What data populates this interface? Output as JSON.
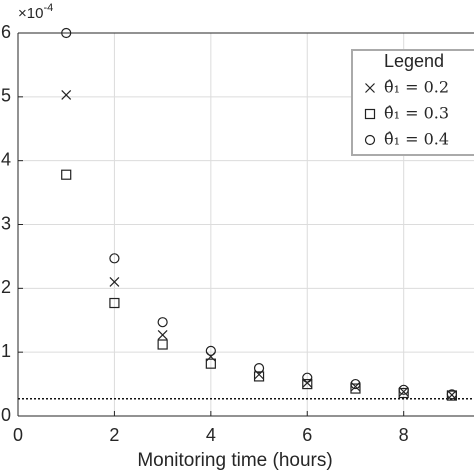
{
  "chart_data": {
    "type": "scatter",
    "x_label": "Monitoring time (hours)",
    "y_multiplier": {
      "base": "×10",
      "exponent": "-4"
    },
    "x": [
      1,
      2,
      3,
      4,
      5,
      6,
      7,
      8,
      9
    ],
    "series": [
      {
        "name": "θ̂₁ = 0.2",
        "marker": "x",
        "color": "#222222",
        "values": [
          5.03,
          2.1,
          1.27,
          0.93,
          0.65,
          0.52,
          0.46,
          0.38,
          0.33
        ]
      },
      {
        "name": "θ̂₁ = 0.3",
        "marker": "square",
        "color": "#222222",
        "values": [
          3.78,
          1.77,
          1.12,
          0.82,
          0.62,
          0.5,
          0.43,
          0.36,
          0.32
        ]
      },
      {
        "name": "θ̂₁ = 0.4",
        "marker": "circle",
        "color": "#222222",
        "values": [
          6.0,
          2.47,
          1.47,
          1.02,
          0.75,
          0.6,
          0.5,
          0.41,
          0.34
        ]
      }
    ],
    "reference_line": 0.27,
    "xlim": [
      0,
      9.5
    ],
    "xticks": [
      0,
      2,
      4,
      6,
      8
    ],
    "ylim": [
      0,
      6
    ],
    "yticks": [
      0,
      1,
      2,
      3,
      4,
      5,
      6
    ],
    "grid": true,
    "legend": {
      "title": "Legend",
      "position": "upper-right"
    }
  }
}
